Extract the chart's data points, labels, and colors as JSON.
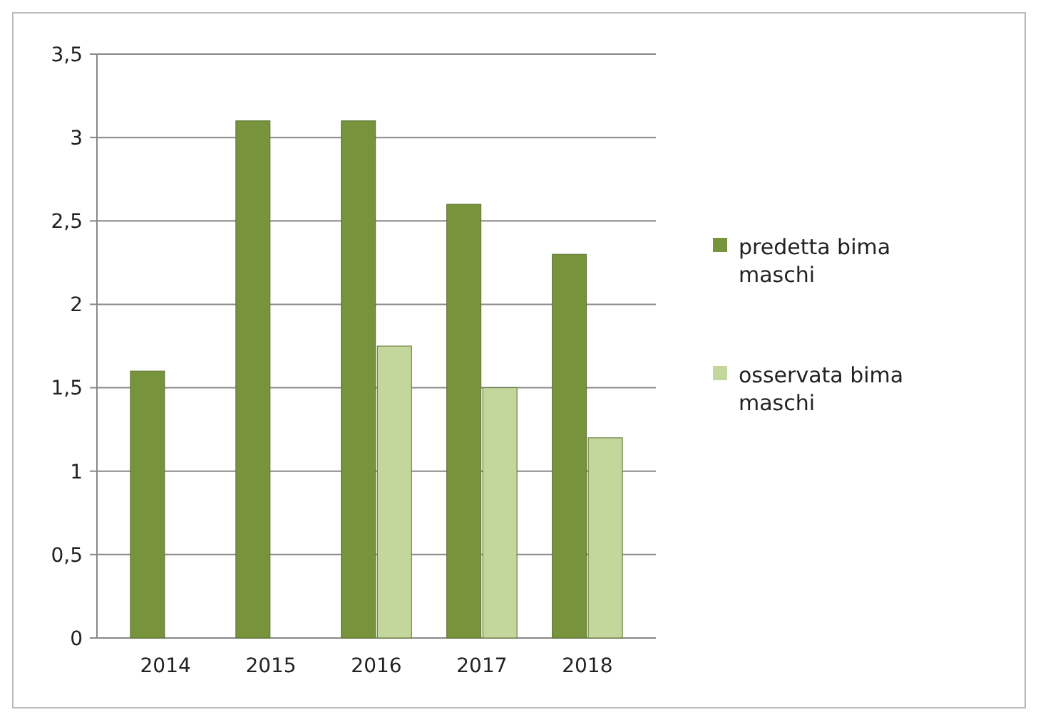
{
  "chart_data": {
    "type": "bar",
    "categories": [
      "2014",
      "2015",
      "2016",
      "2017",
      "2018"
    ],
    "series": [
      {
        "name": "predetta bima maschi",
        "color": "#77933c",
        "values": [
          1.6,
          3.1,
          3.1,
          2.6,
          2.3
        ]
      },
      {
        "name": "osservata bima maschi",
        "color": "#c3d69b",
        "values": [
          0,
          0,
          1.75,
          1.5,
          1.2
        ]
      }
    ],
    "ylim": [
      0,
      3.5
    ],
    "yticks": [
      0,
      {
        "value": 0.5,
        "label": "0,5"
      },
      1,
      {
        "value": 1.5,
        "label": "1,5"
      },
      2,
      {
        "value": 2.5,
        "label": "2,5"
      },
      3,
      {
        "value": 3.5,
        "label": "3,5"
      }
    ],
    "grid": "y",
    "legend": "right"
  }
}
